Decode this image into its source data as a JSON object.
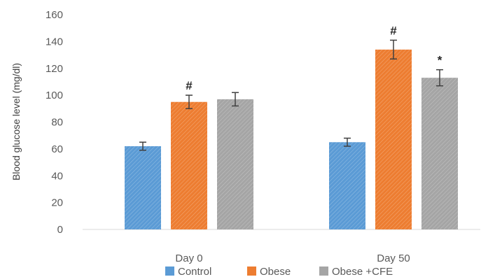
{
  "chart_data": {
    "type": "bar",
    "categories": [
      "Day 0",
      "Day 50"
    ],
    "series": [
      {
        "name": "Control",
        "color": "#5B9BD5",
        "values": [
          62,
          65
        ],
        "errors": [
          3,
          3
        ],
        "annotations": [
          "",
          ""
        ]
      },
      {
        "name": "Obese",
        "color": "#ED7D31",
        "values": [
          95,
          134
        ],
        "errors": [
          5,
          7
        ],
        "annotations": [
          "#",
          "#"
        ]
      },
      {
        "name": "Obese +CFE",
        "color": "#A5A5A5",
        "values": [
          97,
          113
        ],
        "errors": [
          5,
          6
        ],
        "annotations": [
          "",
          "*"
        ]
      }
    ],
    "ylabel": "Blood glucose level (mg/dl)",
    "xlabel": "",
    "ylim": [
      0,
      160
    ],
    "yticks": [
      0,
      20,
      40,
      60,
      80,
      100,
      120,
      140,
      160
    ],
    "grid": false,
    "legend_position": "bottom",
    "error_bars": true
  }
}
